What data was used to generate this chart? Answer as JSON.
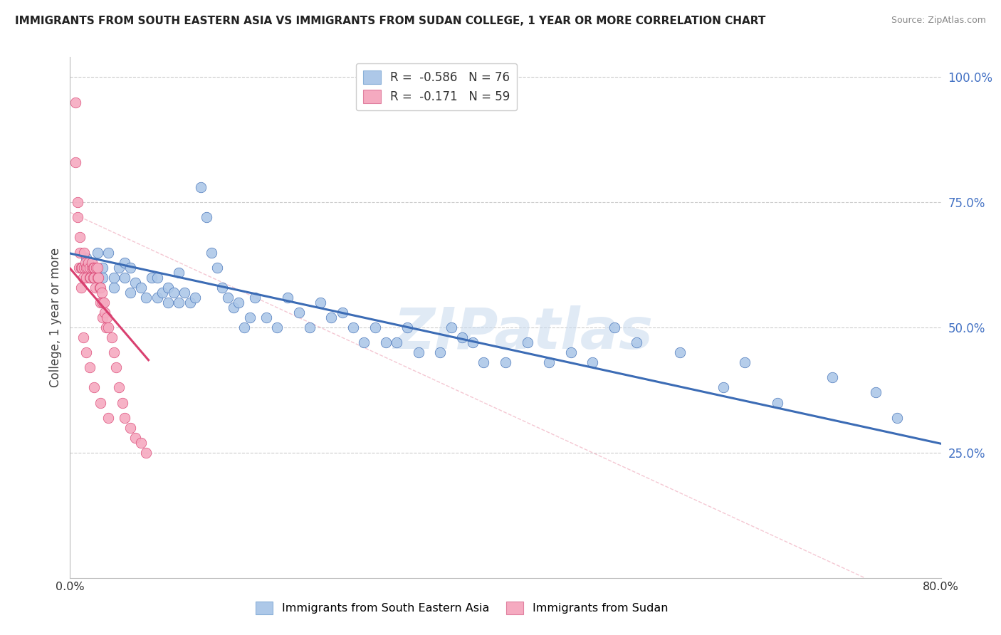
{
  "title": "IMMIGRANTS FROM SOUTH EASTERN ASIA VS IMMIGRANTS FROM SUDAN COLLEGE, 1 YEAR OR MORE CORRELATION CHART",
  "source": "Source: ZipAtlas.com",
  "ylabel": "College, 1 year or more",
  "legend1_label": "R =  -0.586   N = 76",
  "legend2_label": "R =  -0.171   N = 59",
  "legend1_color": "#adc8e8",
  "legend2_color": "#f5aac0",
  "trend1_color": "#3c6cb5",
  "trend2_color": "#d94070",
  "dot1_color": "#adc8e8",
  "dot2_color": "#f5aac0",
  "background_color": "#ffffff",
  "grid_color": "#cccccc",
  "right_axis_color": "#4472c4",
  "watermark": "ZIPatlas",
  "blue_x": [
    0.01,
    0.015,
    0.02,
    0.02,
    0.025,
    0.025,
    0.03,
    0.03,
    0.035,
    0.04,
    0.04,
    0.045,
    0.05,
    0.05,
    0.055,
    0.055,
    0.06,
    0.065,
    0.07,
    0.075,
    0.08,
    0.08,
    0.085,
    0.09,
    0.09,
    0.095,
    0.1,
    0.1,
    0.105,
    0.11,
    0.115,
    0.12,
    0.125,
    0.13,
    0.135,
    0.14,
    0.145,
    0.15,
    0.155,
    0.16,
    0.165,
    0.17,
    0.18,
    0.19,
    0.2,
    0.21,
    0.22,
    0.23,
    0.24,
    0.25,
    0.26,
    0.27,
    0.28,
    0.29,
    0.3,
    0.31,
    0.32,
    0.34,
    0.35,
    0.36,
    0.37,
    0.38,
    0.4,
    0.42,
    0.44,
    0.46,
    0.48,
    0.5,
    0.52,
    0.56,
    0.6,
    0.62,
    0.65,
    0.7,
    0.74,
    0.76
  ],
  "blue_y": [
    0.62,
    0.64,
    0.6,
    0.62,
    0.6,
    0.65,
    0.62,
    0.6,
    0.65,
    0.58,
    0.6,
    0.62,
    0.63,
    0.6,
    0.57,
    0.62,
    0.59,
    0.58,
    0.56,
    0.6,
    0.56,
    0.6,
    0.57,
    0.55,
    0.58,
    0.57,
    0.61,
    0.55,
    0.57,
    0.55,
    0.56,
    0.78,
    0.72,
    0.65,
    0.62,
    0.58,
    0.56,
    0.54,
    0.55,
    0.5,
    0.52,
    0.56,
    0.52,
    0.5,
    0.56,
    0.53,
    0.5,
    0.55,
    0.52,
    0.53,
    0.5,
    0.47,
    0.5,
    0.47,
    0.47,
    0.5,
    0.45,
    0.45,
    0.5,
    0.48,
    0.47,
    0.43,
    0.43,
    0.47,
    0.43,
    0.45,
    0.43,
    0.5,
    0.47,
    0.45,
    0.38,
    0.43,
    0.35,
    0.4,
    0.37,
    0.32
  ],
  "pink_x": [
    0.005,
    0.007,
    0.008,
    0.009,
    0.01,
    0.01,
    0.011,
    0.012,
    0.013,
    0.013,
    0.014,
    0.015,
    0.015,
    0.016,
    0.017,
    0.018,
    0.018,
    0.019,
    0.02,
    0.02,
    0.021,
    0.021,
    0.022,
    0.022,
    0.023,
    0.024,
    0.025,
    0.025,
    0.026,
    0.027,
    0.028,
    0.028,
    0.029,
    0.03,
    0.03,
    0.031,
    0.032,
    0.033,
    0.034,
    0.035,
    0.038,
    0.04,
    0.042,
    0.045,
    0.048,
    0.05,
    0.055,
    0.06,
    0.065,
    0.07,
    0.005,
    0.007,
    0.009,
    0.012,
    0.015,
    0.018,
    0.022,
    0.028,
    0.035
  ],
  "pink_y": [
    0.95,
    0.72,
    0.62,
    0.65,
    0.62,
    0.58,
    0.62,
    0.6,
    0.62,
    0.65,
    0.63,
    0.62,
    0.6,
    0.62,
    0.63,
    0.62,
    0.6,
    0.6,
    0.62,
    0.63,
    0.6,
    0.62,
    0.6,
    0.62,
    0.58,
    0.62,
    0.6,
    0.62,
    0.6,
    0.58,
    0.55,
    0.58,
    0.57,
    0.52,
    0.55,
    0.55,
    0.53,
    0.5,
    0.52,
    0.5,
    0.48,
    0.45,
    0.42,
    0.38,
    0.35,
    0.32,
    0.3,
    0.28,
    0.27,
    0.25,
    0.83,
    0.75,
    0.68,
    0.48,
    0.45,
    0.42,
    0.38,
    0.35,
    0.32
  ],
  "blue_trend_x0": 0.0,
  "blue_trend_y0": 0.648,
  "blue_trend_x1": 0.8,
  "blue_trend_y1": 0.268,
  "pink_trend_x0": 0.0,
  "pink_trend_y0": 0.618,
  "pink_trend_x1": 0.072,
  "pink_trend_y1": 0.435,
  "ref_line_x0": 0.0,
  "ref_line_y0": 0.73,
  "ref_line_x1": 0.73,
  "ref_line_y1": 0.0,
  "xlim": [
    0.0,
    0.8
  ],
  "ylim": [
    0.0,
    1.04
  ],
  "xtick_positions": [
    0.0,
    0.1,
    0.2,
    0.3,
    0.4,
    0.5,
    0.6,
    0.7,
    0.8
  ],
  "ytick_positions": [
    0.25,
    0.5,
    0.75,
    1.0
  ],
  "ytick_labels": [
    "25.0%",
    "50.0%",
    "75.0%",
    "100.0%"
  ]
}
